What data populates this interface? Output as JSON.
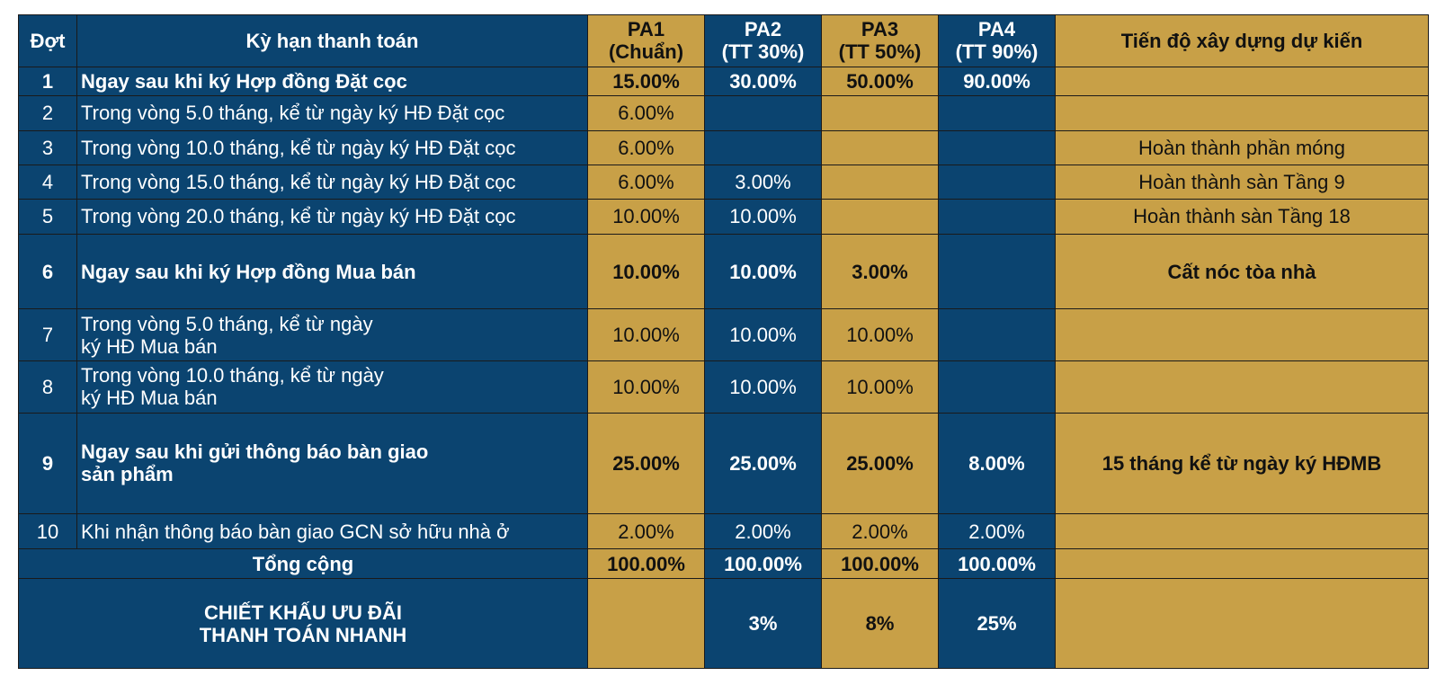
{
  "colors": {
    "blue": "#0b4470",
    "gold": "#c8a047"
  },
  "headers": {
    "dot": "Đợt",
    "term": "Kỳ hạn thanh toán",
    "pa1_line1": "PA1",
    "pa1_line2": "(Chuẩn)",
    "pa2_line1": "PA2",
    "pa2_line2": "(TT 30%)",
    "pa3_line1": "PA3",
    "pa3_line2": "(TT 50%)",
    "pa4_line1": "PA4",
    "pa4_line2": "(TT 90%)",
    "progress": "Tiến độ xây dựng dự kiến"
  },
  "rows": [
    {
      "no": "1",
      "term_line1": "Ngay sau khi ký Hợp đồng Đặt cọc",
      "term_line2": "",
      "pa1": "15.00%",
      "pa2": "30.00%",
      "pa3": "50.00%",
      "pa4": "90.00%",
      "progress": ""
    },
    {
      "no": "2",
      "term_line1": "Trong vòng 5.0 tháng, kể từ ngày ký HĐ Đặt cọc",
      "term_line2": "",
      "pa1": "6.00%",
      "pa2": "",
      "pa3": "",
      "pa4": "",
      "progress": ""
    },
    {
      "no": "3",
      "term_line1": "Trong vòng 10.0 tháng, kể từ ngày ký HĐ Đặt cọc",
      "term_line2": "",
      "pa1": "6.00%",
      "pa2": "",
      "pa3": "",
      "pa4": "",
      "progress": "Hoàn thành phần móng"
    },
    {
      "no": "4",
      "term_line1": "Trong vòng 15.0 tháng, kể từ ngày ký HĐ Đặt cọc",
      "term_line2": "",
      "pa1": "6.00%",
      "pa2": "3.00%",
      "pa3": "",
      "pa4": "",
      "progress": "Hoàn thành sàn Tầng 9"
    },
    {
      "no": "5",
      "term_line1": "Trong vòng 20.0 tháng, kể từ ngày ký HĐ Đặt cọc",
      "term_line2": "",
      "pa1": "10.00%",
      "pa2": "10.00%",
      "pa3": "",
      "pa4": "",
      "progress": "Hoàn thành sàn Tầng 18"
    },
    {
      "no": "6",
      "term_line1": "Ngay sau khi ký Hợp đồng Mua bán",
      "term_line2": "",
      "pa1": "10.00%",
      "pa2": "10.00%",
      "pa3": "3.00%",
      "pa4": "",
      "progress": "Cất nóc tòa nhà"
    },
    {
      "no": "7",
      "term_line1": "Trong vòng 5.0 tháng, kể từ ngày",
      "term_line2": "ký HĐ Mua bán",
      "pa1": "10.00%",
      "pa2": "10.00%",
      "pa3": "10.00%",
      "pa4": "",
      "progress": ""
    },
    {
      "no": "8",
      "term_line1": "Trong vòng 10.0 tháng, kể từ ngày",
      "term_line2": "ký HĐ Mua bán",
      "pa1": "10.00%",
      "pa2": "10.00%",
      "pa3": "10.00%",
      "pa4": "",
      "progress": ""
    },
    {
      "no": "9",
      "term_line1": "Ngay sau khi gửi thông báo bàn giao",
      "term_line2": "sản phẩm",
      "pa1": "25.00%",
      "pa2": "25.00%",
      "pa3": "25.00%",
      "pa4": "8.00%",
      "progress": "15 tháng kể từ ngày ký HĐMB"
    },
    {
      "no": "10",
      "term_line1": "Khi nhận thông báo bàn giao GCN sở hữu nhà ở",
      "term_line2": "",
      "pa1": "2.00%",
      "pa2": "2.00%",
      "pa3": "2.00%",
      "pa4": "2.00%",
      "progress": ""
    }
  ],
  "total": {
    "label": "Tổng cộng",
    "pa1": "100.00%",
    "pa2": "100.00%",
    "pa3": "100.00%",
    "pa4": "100.00%"
  },
  "discount": {
    "label_line1": "CHIẾT KHẤU ƯU ĐÃI",
    "label_line2": "THANH TOÁN NHANH",
    "pa1": "",
    "pa2": "3%",
    "pa3": "8%",
    "pa4": "25%"
  }
}
